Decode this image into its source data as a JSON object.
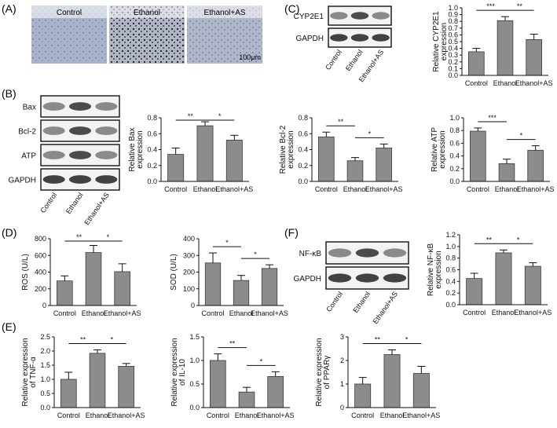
{
  "figure": {
    "panels": [
      {
        "letter": "(A)"
      },
      {
        "letter": "(B)"
      },
      {
        "letter": "(C)"
      },
      {
        "letter": "(D)"
      },
      {
        "letter": "(E)"
      },
      {
        "letter": "(F)"
      }
    ],
    "histology": {
      "labels": [
        "Control",
        "Ethanol",
        "Ethanol+AS"
      ],
      "scale_bar": "100μm"
    },
    "blots": [
      {
        "panel": "C",
        "bands": [
          "CYP2E1",
          "GAPDH"
        ],
        "lanes": [
          "Control",
          "Ethanol",
          "Ethanol+AS"
        ]
      },
      {
        "panel": "B",
        "bands": [
          "Bax",
          "Bcl-2",
          "ATP",
          "GAPDH"
        ],
        "lanes": [
          "Control",
          "Ethanol",
          "Ethanol+AS"
        ]
      },
      {
        "panel": "F",
        "bands": [
          "NF-κB",
          "GAPDH"
        ],
        "lanes": [
          "Control",
          "Ethanol",
          "Ethanol+AS"
        ]
      }
    ]
  },
  "chart_data": [
    {
      "id": "cyp2e1",
      "panel": "C",
      "type": "bar",
      "categories": [
        "Control",
        "Ethanol",
        "Ethanol+AS"
      ],
      "values": [
        0.35,
        0.81,
        0.53
      ],
      "errors": [
        0.05,
        0.06,
        0.08
      ],
      "ylabel": [
        "Relative CYP2E1",
        "expression"
      ],
      "ylim": [
        0,
        1.0
      ],
      "ticks": [
        "0.0",
        "0.1",
        "0.2",
        "0.3",
        "0.4",
        "0.5",
        "0.6",
        "0.7",
        "0.8",
        "0.9",
        "1.0"
      ],
      "sig": [
        {
          "pair": [
            0,
            1
          ],
          "label": "***"
        },
        {
          "pair": [
            1,
            2
          ],
          "label": "**"
        }
      ]
    },
    {
      "id": "bax",
      "panel": "B",
      "type": "bar",
      "categories": [
        "Control",
        "Ethanol",
        "Ethanol+AS"
      ],
      "values": [
        0.34,
        0.7,
        0.52
      ],
      "errors": [
        0.08,
        0.05,
        0.06
      ],
      "ylabel": [
        "Relative Bax",
        "expression"
      ],
      "ylim": [
        0,
        0.8
      ],
      "ticks": [
        "0.0",
        "0.2",
        "0.4",
        "0.6",
        "0.8"
      ],
      "sig": [
        {
          "pair": [
            0,
            1
          ],
          "label": "**"
        },
        {
          "pair": [
            1,
            2
          ],
          "label": "*"
        }
      ]
    },
    {
      "id": "bcl2",
      "panel": "B",
      "type": "bar",
      "categories": [
        "Control",
        "Ethanol",
        "Ethanol+AS"
      ],
      "values": [
        0.56,
        0.26,
        0.42
      ],
      "errors": [
        0.06,
        0.04,
        0.05
      ],
      "ylabel": [
        "Relative Bcl-2",
        "expression"
      ],
      "ylim": [
        0,
        0.8
      ],
      "ticks": [
        "0.0",
        "0.2",
        "0.4",
        "0.6",
        "0.8"
      ],
      "sig": [
        {
          "pair": [
            0,
            1
          ],
          "label": "**"
        },
        {
          "pair": [
            1,
            2
          ],
          "label": "*"
        }
      ]
    },
    {
      "id": "atp",
      "panel": "B",
      "type": "bar",
      "categories": [
        "Control",
        "Ethanol",
        "Ethanol+AS"
      ],
      "values": [
        0.79,
        0.28,
        0.49
      ],
      "errors": [
        0.05,
        0.07,
        0.07
      ],
      "ylabel": [
        "Relative ATP",
        "expression"
      ],
      "ylim": [
        0,
        1.0
      ],
      "ticks": [
        "0.0",
        "0.2",
        "0.4",
        "0.6",
        "0.8",
        "1.0"
      ],
      "sig": [
        {
          "pair": [
            0,
            1
          ],
          "label": "***"
        },
        {
          "pair": [
            1,
            2
          ],
          "label": "*"
        }
      ]
    },
    {
      "id": "ros",
      "panel": "D",
      "type": "bar",
      "categories": [
        "Control",
        "Ethanol",
        "Ethanol+AS"
      ],
      "values": [
        295,
        635,
        405
      ],
      "errors": [
        60,
        85,
        95
      ],
      "ylabel": [
        "ROS (U/L)"
      ],
      "ylim": [
        0,
        800
      ],
      "ticks": [
        "0",
        "200",
        "400",
        "600",
        "800"
      ],
      "sig": [
        {
          "pair": [
            0,
            1
          ],
          "label": "**"
        },
        {
          "pair": [
            1,
            2
          ],
          "label": "*"
        }
      ]
    },
    {
      "id": "sod",
      "panel": "D",
      "type": "bar",
      "categories": [
        "Control",
        "Ethanol",
        "Ethanol+AS"
      ],
      "values": [
        255,
        150,
        222
      ],
      "errors": [
        60,
        30,
        22
      ],
      "ylabel": [
        "SOD (U/L)"
      ],
      "ylim": [
        0,
        400
      ],
      "ticks": [
        "0",
        "100",
        "200",
        "300",
        "400"
      ],
      "sig": [
        {
          "pair": [
            0,
            1
          ],
          "label": "*"
        },
        {
          "pair": [
            1,
            2
          ],
          "label": "*"
        }
      ]
    },
    {
      "id": "nfkb",
      "panel": "F",
      "type": "bar",
      "categories": [
        "Control",
        "Ethanol",
        "Ethanol+AS"
      ],
      "values": [
        0.45,
        0.89,
        0.66
      ],
      "errors": [
        0.09,
        0.05,
        0.06
      ],
      "ylabel": [
        "Relative NF-κB",
        "expression"
      ],
      "ylim": [
        0,
        1.2
      ],
      "ticks": [
        "0.0",
        "0.2",
        "0.4",
        "0.6",
        "0.8",
        "1.0",
        "1.2"
      ],
      "sig": [
        {
          "pair": [
            0,
            1
          ],
          "label": "**"
        },
        {
          "pair": [
            1,
            2
          ],
          "label": "*"
        }
      ]
    },
    {
      "id": "tnfa",
      "panel": "E",
      "type": "bar",
      "categories": [
        "Control",
        "Ethanol",
        "Ethanol+AS"
      ],
      "values": [
        1.0,
        1.92,
        1.46
      ],
      "errors": [
        0.25,
        0.12,
        0.1
      ],
      "ylabel": [
        "Relative expression",
        "of TNF-α"
      ],
      "ylim": [
        0,
        2.5
      ],
      "ticks": [
        "0.0",
        "0.5",
        "1.0",
        "1.5",
        "2.0",
        "2.5"
      ],
      "sig": [
        {
          "pair": [
            0,
            1
          ],
          "label": "**"
        },
        {
          "pair": [
            1,
            2
          ],
          "label": "*"
        }
      ]
    },
    {
      "id": "il10",
      "panel": "E",
      "type": "bar",
      "categories": [
        "Control",
        "Ethanol",
        "Ethanol+AS"
      ],
      "values": [
        1.0,
        0.33,
        0.66
      ],
      "errors": [
        0.14,
        0.1,
        0.1
      ],
      "ylabel": [
        "Relative expression",
        "of IL-10"
      ],
      "ylim": [
        0,
        1.5
      ],
      "ticks": [
        "0.0",
        "0.5",
        "1.0",
        "1.5"
      ],
      "sig": [
        {
          "pair": [
            0,
            1
          ],
          "label": "**"
        },
        {
          "pair": [
            1,
            2
          ],
          "label": "*"
        }
      ]
    },
    {
      "id": "ppar",
      "panel": "E",
      "type": "bar",
      "categories": [
        "Control",
        "Ethanol",
        "Ethanol+AS"
      ],
      "values": [
        1.0,
        2.25,
        1.45
      ],
      "errors": [
        0.28,
        0.2,
        0.3
      ],
      "ylabel": [
        "Relative expression",
        "of PPARγ"
      ],
      "ylim": [
        0,
        3
      ],
      "ticks": [
        "0",
        "1",
        "2",
        "3"
      ],
      "sig": [
        {
          "pair": [
            0,
            1
          ],
          "label": "**"
        },
        {
          "pair": [
            1,
            2
          ],
          "label": "*"
        }
      ]
    }
  ]
}
